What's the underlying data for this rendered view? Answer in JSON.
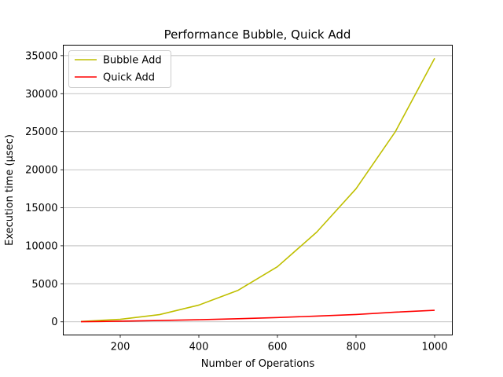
{
  "chart_data": {
    "type": "line",
    "title": "Performance Bubble, Quick Add",
    "xlabel": "Number of Operations",
    "ylabel": "Execution time (μsec)",
    "x": [
      100,
      200,
      300,
      400,
      500,
      600,
      700,
      800,
      900,
      1000
    ],
    "xlim": [
      55,
      1045
    ],
    "ylim": [
      -1730,
      36380
    ],
    "xticks": [
      200,
      400,
      600,
      800,
      1000
    ],
    "yticks": [
      0,
      5000,
      10000,
      15000,
      20000,
      25000,
      30000,
      35000
    ],
    "grid": "horizontal",
    "legend_position": "top-left",
    "series": [
      {
        "name": "Bubble Add",
        "color": "#bfbf00",
        "values": [
          50,
          330,
          950,
          2200,
          4150,
          7250,
          11800,
          17500,
          25000,
          34650
        ]
      },
      {
        "name": "Quick Add",
        "color": "#ff0000",
        "values": [
          20,
          80,
          170,
          280,
          410,
          560,
          760,
          960,
          1270,
          1520
        ]
      }
    ]
  }
}
